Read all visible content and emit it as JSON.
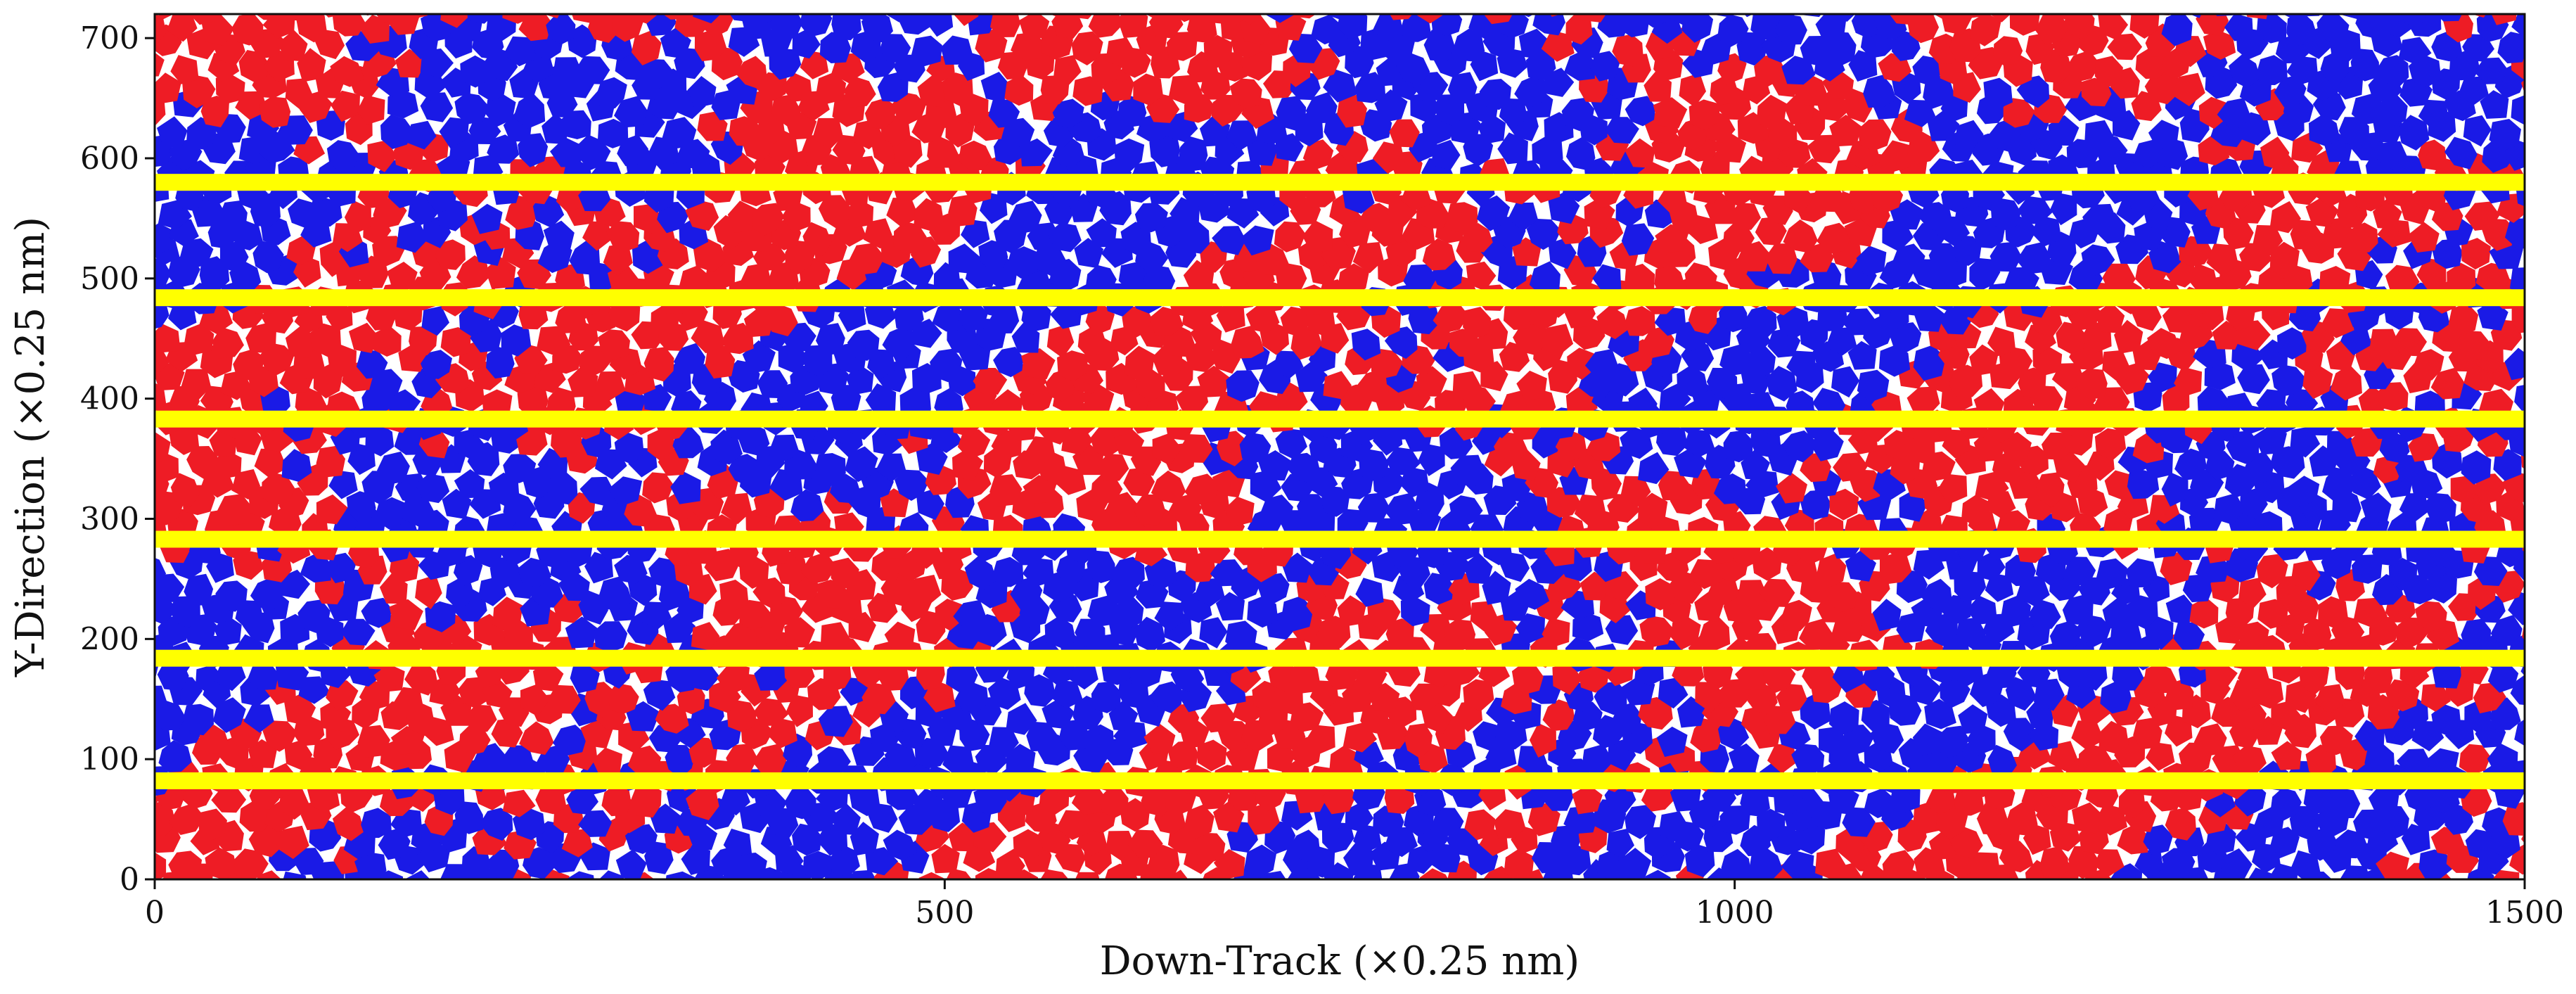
{
  "chart_data": {
    "type": "heatmap",
    "title": "",
    "xlabel": "Down-Track (×0.25 nm)",
    "ylabel": "Y-Direction (×0.25 nm)",
    "xlim": [
      0,
      1500
    ],
    "ylim": [
      0,
      720
    ],
    "x_ticks": [
      {
        "value": 0,
        "label": "0"
      },
      {
        "value": 500,
        "label": "500"
      },
      {
        "value": 1000,
        "label": "1000"
      },
      {
        "value": 1500,
        "label": "1500"
      }
    ],
    "y_ticks": [
      {
        "value": 0,
        "label": "0"
      },
      {
        "value": 100,
        "label": "100"
      },
      {
        "value": 200,
        "label": "200"
      },
      {
        "value": 300,
        "label": "300"
      },
      {
        "value": 400,
        "label": "400"
      },
      {
        "value": 500,
        "label": "500"
      },
      {
        "value": 600,
        "label": "600"
      },
      {
        "value": 700,
        "label": "700"
      }
    ],
    "track_boundaries_y": [
      82,
      184,
      283,
      383,
      484,
      580
    ],
    "grain_size": 20,
    "colors": {
      "magnetization_up": "#ee1c25",
      "magnetization_down": "#1a1ae6",
      "grain_boundary": "#ffffff",
      "track_boundary": "#ffff00",
      "axis": "#111111"
    },
    "grid": false,
    "legend": "none"
  }
}
